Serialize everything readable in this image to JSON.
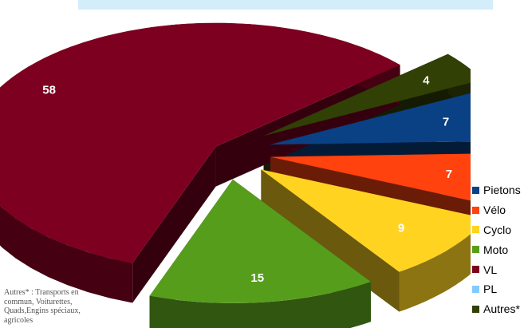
{
  "chart_data": {
    "type": "pie",
    "title": "",
    "style": "3d-exploded",
    "legend_position": "right",
    "slices": [
      {
        "name": "Pietons",
        "value": 7,
        "color": "#0a4185",
        "label": "7"
      },
      {
        "name": "Vélo",
        "value": 7,
        "color": "#ff420e",
        "label": "7"
      },
      {
        "name": "Cyclo",
        "value": 9,
        "color": "#ffd320",
        "label": "9"
      },
      {
        "name": "Moto",
        "value": 15,
        "color": "#579d1c",
        "label": "15"
      },
      {
        "name": "VL",
        "value": 58,
        "color": "#7e0021",
        "label": "58"
      },
      {
        "name": "PL",
        "value": 0,
        "color": "#83caff",
        "label": ""
      },
      {
        "name": "Autres*",
        "value": 4,
        "color": "#314004",
        "label": "4"
      }
    ]
  },
  "footnote": "Autres* : Transports en commun,  Voiturettes, Quads,Engins spéciaux, agricoles"
}
